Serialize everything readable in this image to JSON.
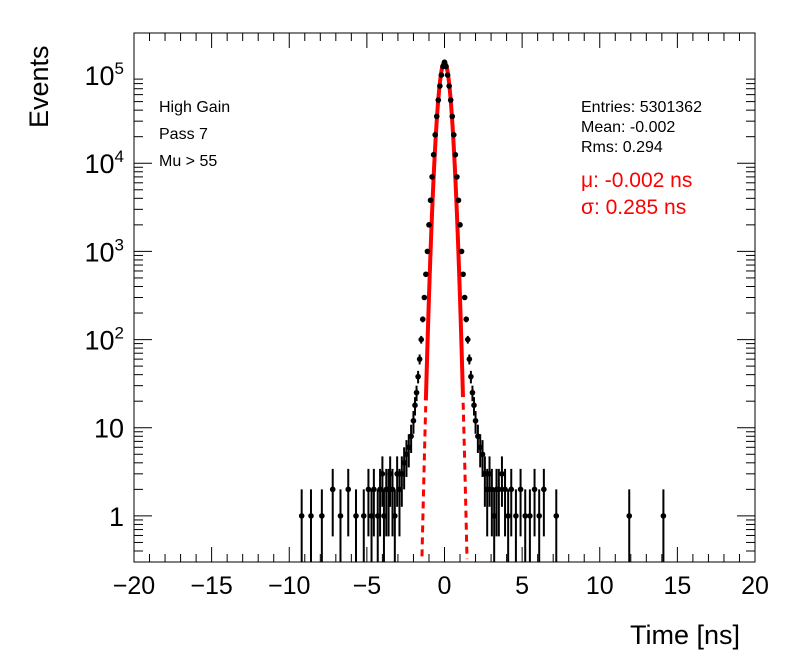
{
  "chart_data": {
    "type": "scatter",
    "title": "",
    "xlabel": "Time [ns]",
    "ylabel": "Events",
    "xlim": [
      -20,
      20
    ],
    "ylim": [
      0.3,
      300000
    ],
    "yscale": "log",
    "grid": false,
    "x_ticks": [
      -20,
      -15,
      -10,
      -5,
      0,
      5,
      10,
      15,
      20
    ],
    "x_tick_labels": [
      "−20",
      "−15",
      "−10",
      "−5",
      "0",
      "5",
      "10",
      "15",
      "20"
    ],
    "y_ticks": [
      1,
      10,
      100,
      1000,
      10000,
      100000
    ],
    "y_tick_labels": [
      "1",
      "10",
      "10^2",
      "10^3",
      "10^4",
      "10^5"
    ],
    "series": [
      {
        "style": "black markers with vertical error bars",
        "color": "#000000",
        "x": [
          -9.2,
          -8.6,
          -7.9,
          -7.2,
          -6.7,
          -6.2,
          -5.7,
          -5.2,
          -4.9,
          -4.7,
          -4.55,
          -4.3,
          -4.15,
          -4.0,
          -3.9,
          -3.75,
          -3.6,
          -3.5,
          -3.35,
          -3.2,
          -3.05,
          -2.9,
          -2.75,
          -2.6,
          -2.45,
          -2.3,
          -2.15,
          -2.0,
          -1.9,
          -1.8,
          -1.7,
          -1.6,
          -1.5,
          -1.4,
          -1.3,
          -1.2,
          -1.1,
          -1.0,
          -0.9,
          -0.8,
          -0.7,
          -0.6,
          -0.5,
          -0.4,
          -0.3,
          -0.2,
          -0.1,
          0.0,
          0.1,
          0.2,
          0.3,
          0.4,
          0.5,
          0.6,
          0.7,
          0.8,
          0.9,
          1.0,
          1.1,
          1.2,
          1.3,
          1.4,
          1.5,
          1.6,
          1.7,
          1.8,
          1.9,
          2.0,
          2.15,
          2.3,
          2.45,
          2.6,
          2.75,
          2.9,
          3.05,
          3.2,
          3.35,
          3.5,
          3.7,
          3.9,
          4.1,
          4.3,
          4.6,
          4.9,
          5.2,
          5.5,
          5.8,
          6.1,
          6.4,
          7.2,
          11.9,
          14.1
        ],
        "y": [
          1,
          1,
          1,
          2,
          1,
          2,
          1,
          1,
          2,
          1,
          2,
          1,
          2,
          3,
          1,
          2,
          2,
          3,
          2,
          1,
          3,
          2,
          3,
          4,
          5,
          6,
          8,
          12,
          18,
          25,
          38,
          60,
          100,
          170,
          300,
          550,
          1000,
          2000,
          3800,
          7000,
          12500,
          21000,
          34000,
          52000,
          75000,
          100000,
          125000,
          140000,
          125000,
          100000,
          75000,
          52000,
          34000,
          21000,
          12500,
          7000,
          3800,
          2000,
          1000,
          550,
          300,
          170,
          100,
          60,
          38,
          25,
          18,
          12,
          8,
          6,
          5,
          3,
          2,
          3,
          2,
          1,
          2,
          2,
          3,
          2,
          1,
          2,
          1,
          2,
          1,
          1,
          2,
          1,
          2,
          1,
          1,
          1
        ]
      },
      {
        "name": "Gaussian fit",
        "style": "red curve, solid above threshold and dashed in tails",
        "color": "#ff0000",
        "mu": -0.002,
        "sigma": 0.285,
        "amplitude": 140000
      }
    ],
    "annotations": {
      "labels_left": [
        "High Gain",
        "Pass 7",
        "Mu > 55"
      ],
      "stats": [
        "Entries: 5301362",
        "Mean: -0.002",
        "Rms: 0.294"
      ],
      "fit": [
        "μ: -0.002 ns",
        "σ: 0.285 ns"
      ]
    }
  }
}
